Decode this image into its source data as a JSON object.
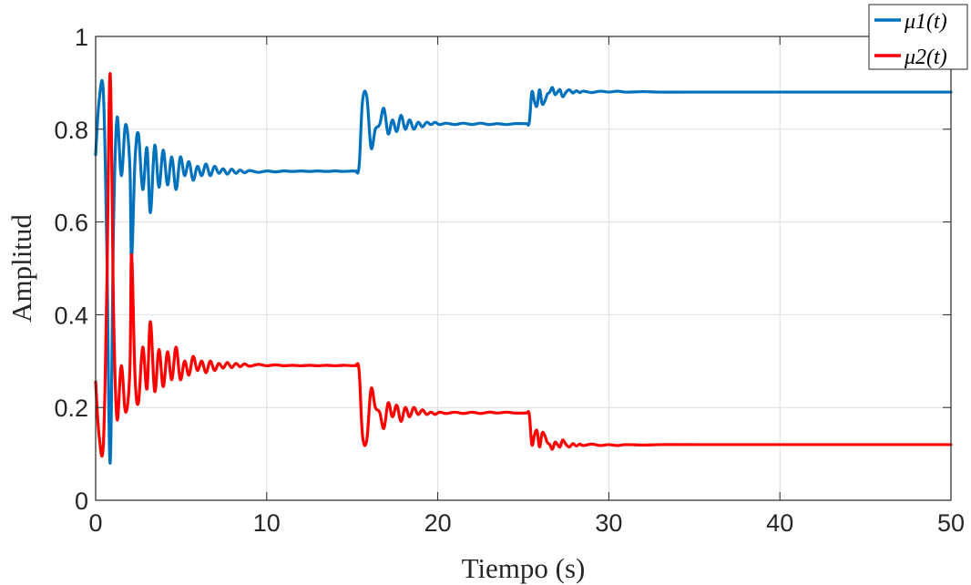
{
  "chart_data": {
    "type": "line",
    "title": "",
    "xlabel": "Tiempo (s)",
    "ylabel": "Amplitud",
    "xlim": [
      0,
      50
    ],
    "ylim": [
      0,
      1
    ],
    "xticks": [
      0,
      10,
      20,
      30,
      40,
      50
    ],
    "yticks": [
      0,
      0.2,
      0.4,
      0.6,
      0.8,
      1
    ],
    "xtick_labels": [
      "0",
      "10",
      "20",
      "30",
      "40",
      "50"
    ],
    "ytick_labels": [
      "0",
      "0.2",
      "0.4",
      "0.6",
      "0.8",
      "1"
    ],
    "grid": true,
    "legend_position": "top-right",
    "series": [
      {
        "name": "μ1(t)",
        "color": "#0072BD",
        "x": [
          0,
          0.2,
          0.45,
          0.65,
          0.85,
          1.05,
          1.25,
          1.5,
          1.75,
          2.0,
          2.1,
          2.3,
          2.5,
          2.75,
          3.0,
          3.2,
          3.45,
          3.7,
          3.95,
          4.2,
          4.45,
          4.7,
          4.95,
          5.2,
          5.45,
          5.7,
          5.95,
          6.2,
          6.45,
          6.7,
          6.95,
          7.2,
          7.45,
          7.7,
          7.95,
          8.2,
          8.45,
          8.7,
          9.0,
          9.5,
          10.0,
          10.5,
          11.0,
          11.5,
          12.0,
          12.5,
          13.0,
          13.5,
          14.0,
          14.5,
          15.0,
          15.2,
          15.4,
          15.6,
          15.85,
          16.1,
          16.35,
          16.6,
          16.85,
          17.1,
          17.35,
          17.6,
          17.85,
          18.1,
          18.35,
          18.6,
          18.85,
          19.1,
          19.35,
          19.6,
          19.85,
          20.1,
          20.5,
          21.0,
          21.5,
          22.0,
          22.5,
          23.0,
          23.5,
          24.0,
          24.5,
          25.0,
          25.2,
          25.35,
          25.5,
          25.65,
          25.8,
          25.95,
          26.1,
          26.25,
          26.4,
          26.55,
          26.7,
          26.85,
          27.0,
          27.15,
          27.3,
          27.5,
          27.7,
          27.9,
          28.1,
          28.3,
          28.5,
          29.0,
          29.5,
          30.0,
          30.5,
          31.0,
          32.0,
          33.0,
          35.0,
          40.0,
          45.0,
          50.0
        ],
        "values": [
          0.745,
          0.86,
          0.88,
          0.55,
          0.08,
          0.6,
          0.825,
          0.7,
          0.81,
          0.72,
          0.52,
          0.73,
          0.79,
          0.67,
          0.76,
          0.62,
          0.765,
          0.675,
          0.755,
          0.68,
          0.74,
          0.67,
          0.74,
          0.7,
          0.73,
          0.69,
          0.72,
          0.7,
          0.725,
          0.7,
          0.72,
          0.705,
          0.715,
          0.703,
          0.714,
          0.705,
          0.712,
          0.706,
          0.711,
          0.707,
          0.71,
          0.708,
          0.71,
          0.709,
          0.71,
          0.709,
          0.71,
          0.709,
          0.71,
          0.709,
          0.71,
          0.71,
          0.72,
          0.86,
          0.87,
          0.76,
          0.8,
          0.81,
          0.845,
          0.79,
          0.82,
          0.795,
          0.83,
          0.8,
          0.82,
          0.8,
          0.815,
          0.805,
          0.815,
          0.81,
          0.815,
          0.81,
          0.813,
          0.81,
          0.813,
          0.81,
          0.813,
          0.81,
          0.812,
          0.81,
          0.812,
          0.812,
          0.812,
          0.815,
          0.88,
          0.86,
          0.85,
          0.885,
          0.855,
          0.86,
          0.875,
          0.88,
          0.89,
          0.875,
          0.88,
          0.885,
          0.87,
          0.88,
          0.885,
          0.878,
          0.883,
          0.879,
          0.882,
          0.879,
          0.882,
          0.88,
          0.882,
          0.88,
          0.881,
          0.88,
          0.88,
          0.88,
          0.88,
          0.88
        ]
      },
      {
        "name": "μ2(t)",
        "color": "#FF0000",
        "x": [
          0,
          0.2,
          0.45,
          0.65,
          0.85,
          1.05,
          1.25,
          1.5,
          1.75,
          2.0,
          2.1,
          2.3,
          2.5,
          2.75,
          3.0,
          3.2,
          3.45,
          3.7,
          3.95,
          4.2,
          4.45,
          4.7,
          4.95,
          5.2,
          5.45,
          5.7,
          5.95,
          6.2,
          6.45,
          6.7,
          6.95,
          7.2,
          7.45,
          7.7,
          7.95,
          8.2,
          8.45,
          8.7,
          9.0,
          9.5,
          10.0,
          10.5,
          11.0,
          11.5,
          12.0,
          12.5,
          13.0,
          13.5,
          14.0,
          14.5,
          15.0,
          15.2,
          15.4,
          15.6,
          15.85,
          16.1,
          16.35,
          16.6,
          16.85,
          17.1,
          17.35,
          17.6,
          17.85,
          18.1,
          18.35,
          18.6,
          18.85,
          19.1,
          19.35,
          19.6,
          19.85,
          20.1,
          20.5,
          21.0,
          21.5,
          22.0,
          22.5,
          23.0,
          23.5,
          24.0,
          24.5,
          25.0,
          25.2,
          25.35,
          25.5,
          25.65,
          25.8,
          25.95,
          26.1,
          26.25,
          26.4,
          26.55,
          26.7,
          26.85,
          27.0,
          27.15,
          27.3,
          27.5,
          27.7,
          27.9,
          28.1,
          28.3,
          28.5,
          29.0,
          29.5,
          30.0,
          30.5,
          31.0,
          32.0,
          33.0,
          35.0,
          40.0,
          45.0,
          50.0
        ],
        "values": [
          0.255,
          0.14,
          0.12,
          0.45,
          0.92,
          0.4,
          0.175,
          0.29,
          0.19,
          0.28,
          0.53,
          0.27,
          0.21,
          0.33,
          0.24,
          0.385,
          0.235,
          0.325,
          0.245,
          0.32,
          0.26,
          0.33,
          0.26,
          0.3,
          0.27,
          0.31,
          0.28,
          0.3,
          0.275,
          0.3,
          0.28,
          0.295,
          0.285,
          0.297,
          0.286,
          0.295,
          0.288,
          0.294,
          0.289,
          0.293,
          0.29,
          0.292,
          0.29,
          0.291,
          0.29,
          0.291,
          0.29,
          0.291,
          0.29,
          0.291,
          0.29,
          0.29,
          0.28,
          0.14,
          0.13,
          0.24,
          0.2,
          0.19,
          0.155,
          0.21,
          0.18,
          0.205,
          0.17,
          0.2,
          0.18,
          0.2,
          0.185,
          0.195,
          0.185,
          0.19,
          0.185,
          0.19,
          0.187,
          0.19,
          0.187,
          0.19,
          0.187,
          0.19,
          0.188,
          0.19,
          0.188,
          0.188,
          0.188,
          0.185,
          0.12,
          0.14,
          0.15,
          0.115,
          0.145,
          0.14,
          0.125,
          0.12,
          0.11,
          0.125,
          0.12,
          0.115,
          0.13,
          0.12,
          0.115,
          0.122,
          0.117,
          0.121,
          0.118,
          0.121,
          0.118,
          0.12,
          0.118,
          0.12,
          0.119,
          0.12,
          0.12,
          0.12,
          0.12,
          0.12
        ]
      }
    ]
  }
}
